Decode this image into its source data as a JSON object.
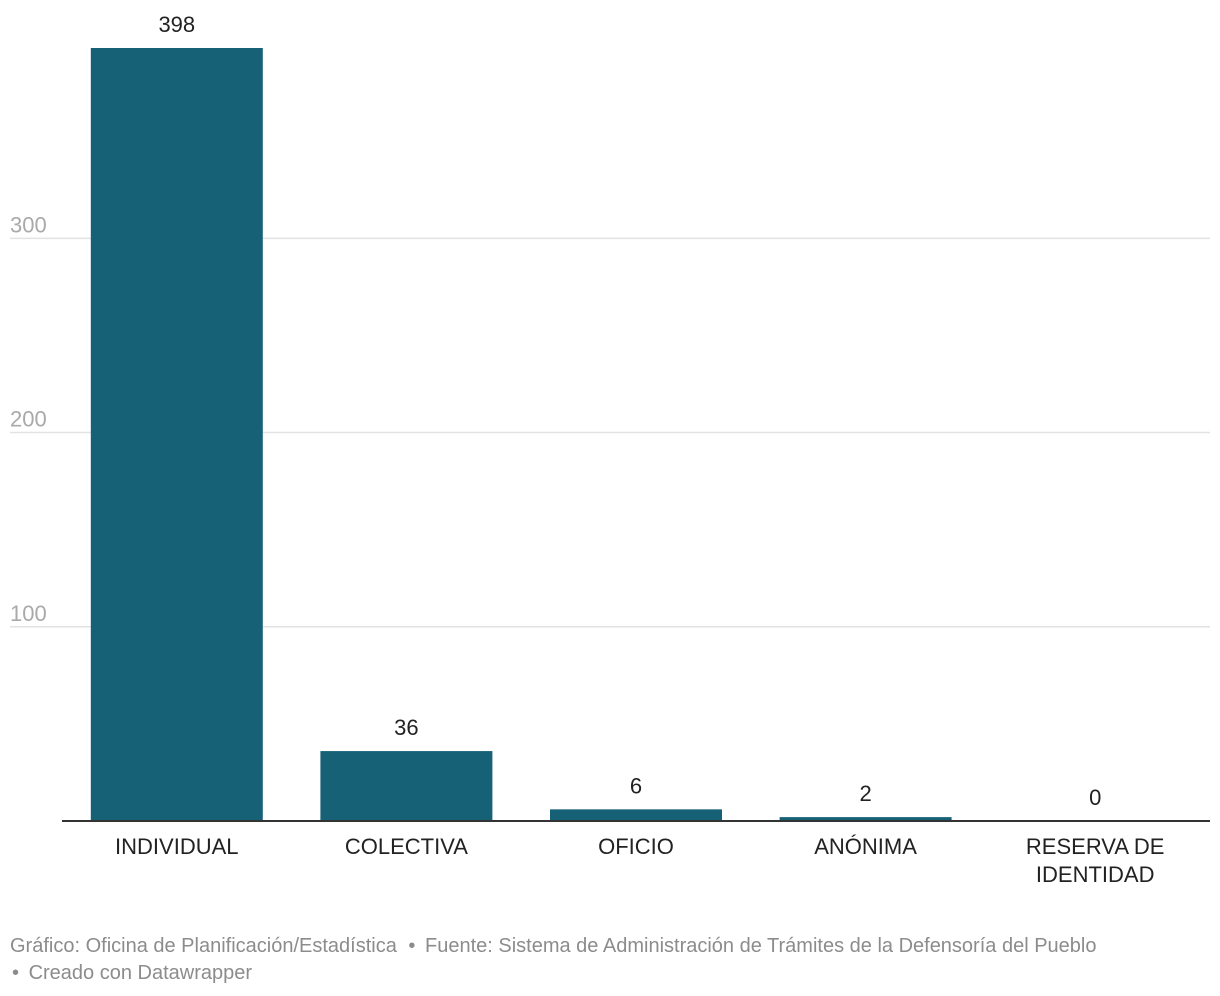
{
  "chart_data": {
    "type": "bar",
    "categories": [
      "INDIVIDUAL",
      "COLECTIVA",
      "OFICIO",
      "ANÓNIMA",
      "RESERVA DE IDENTIDAD"
    ],
    "category_lines": [
      [
        "INDIVIDUAL"
      ],
      [
        "COLECTIVA"
      ],
      [
        "OFICIO"
      ],
      [
        "ANÓNIMA"
      ],
      [
        "RESERVA DE",
        "IDENTIDAD"
      ]
    ],
    "values": [
      398,
      36,
      6,
      2,
      0
    ],
    "ylim": [
      0,
      398
    ],
    "yticks": [
      100,
      200,
      300
    ],
    "grid": true,
    "colors": {
      "bar": "#176177",
      "grid": "#e2e2e2",
      "axis": "#333333",
      "tick_text": "#a9a9a9",
      "label_text": "#222222"
    }
  },
  "footer": {
    "credit": "Gráfico: Oficina de Planificación/Estadística",
    "source": "Fuente: Sistema de Administración de Trámites de la Defensoría del Pueblo",
    "created": "Creado con Datawrapper",
    "separator": "•"
  }
}
